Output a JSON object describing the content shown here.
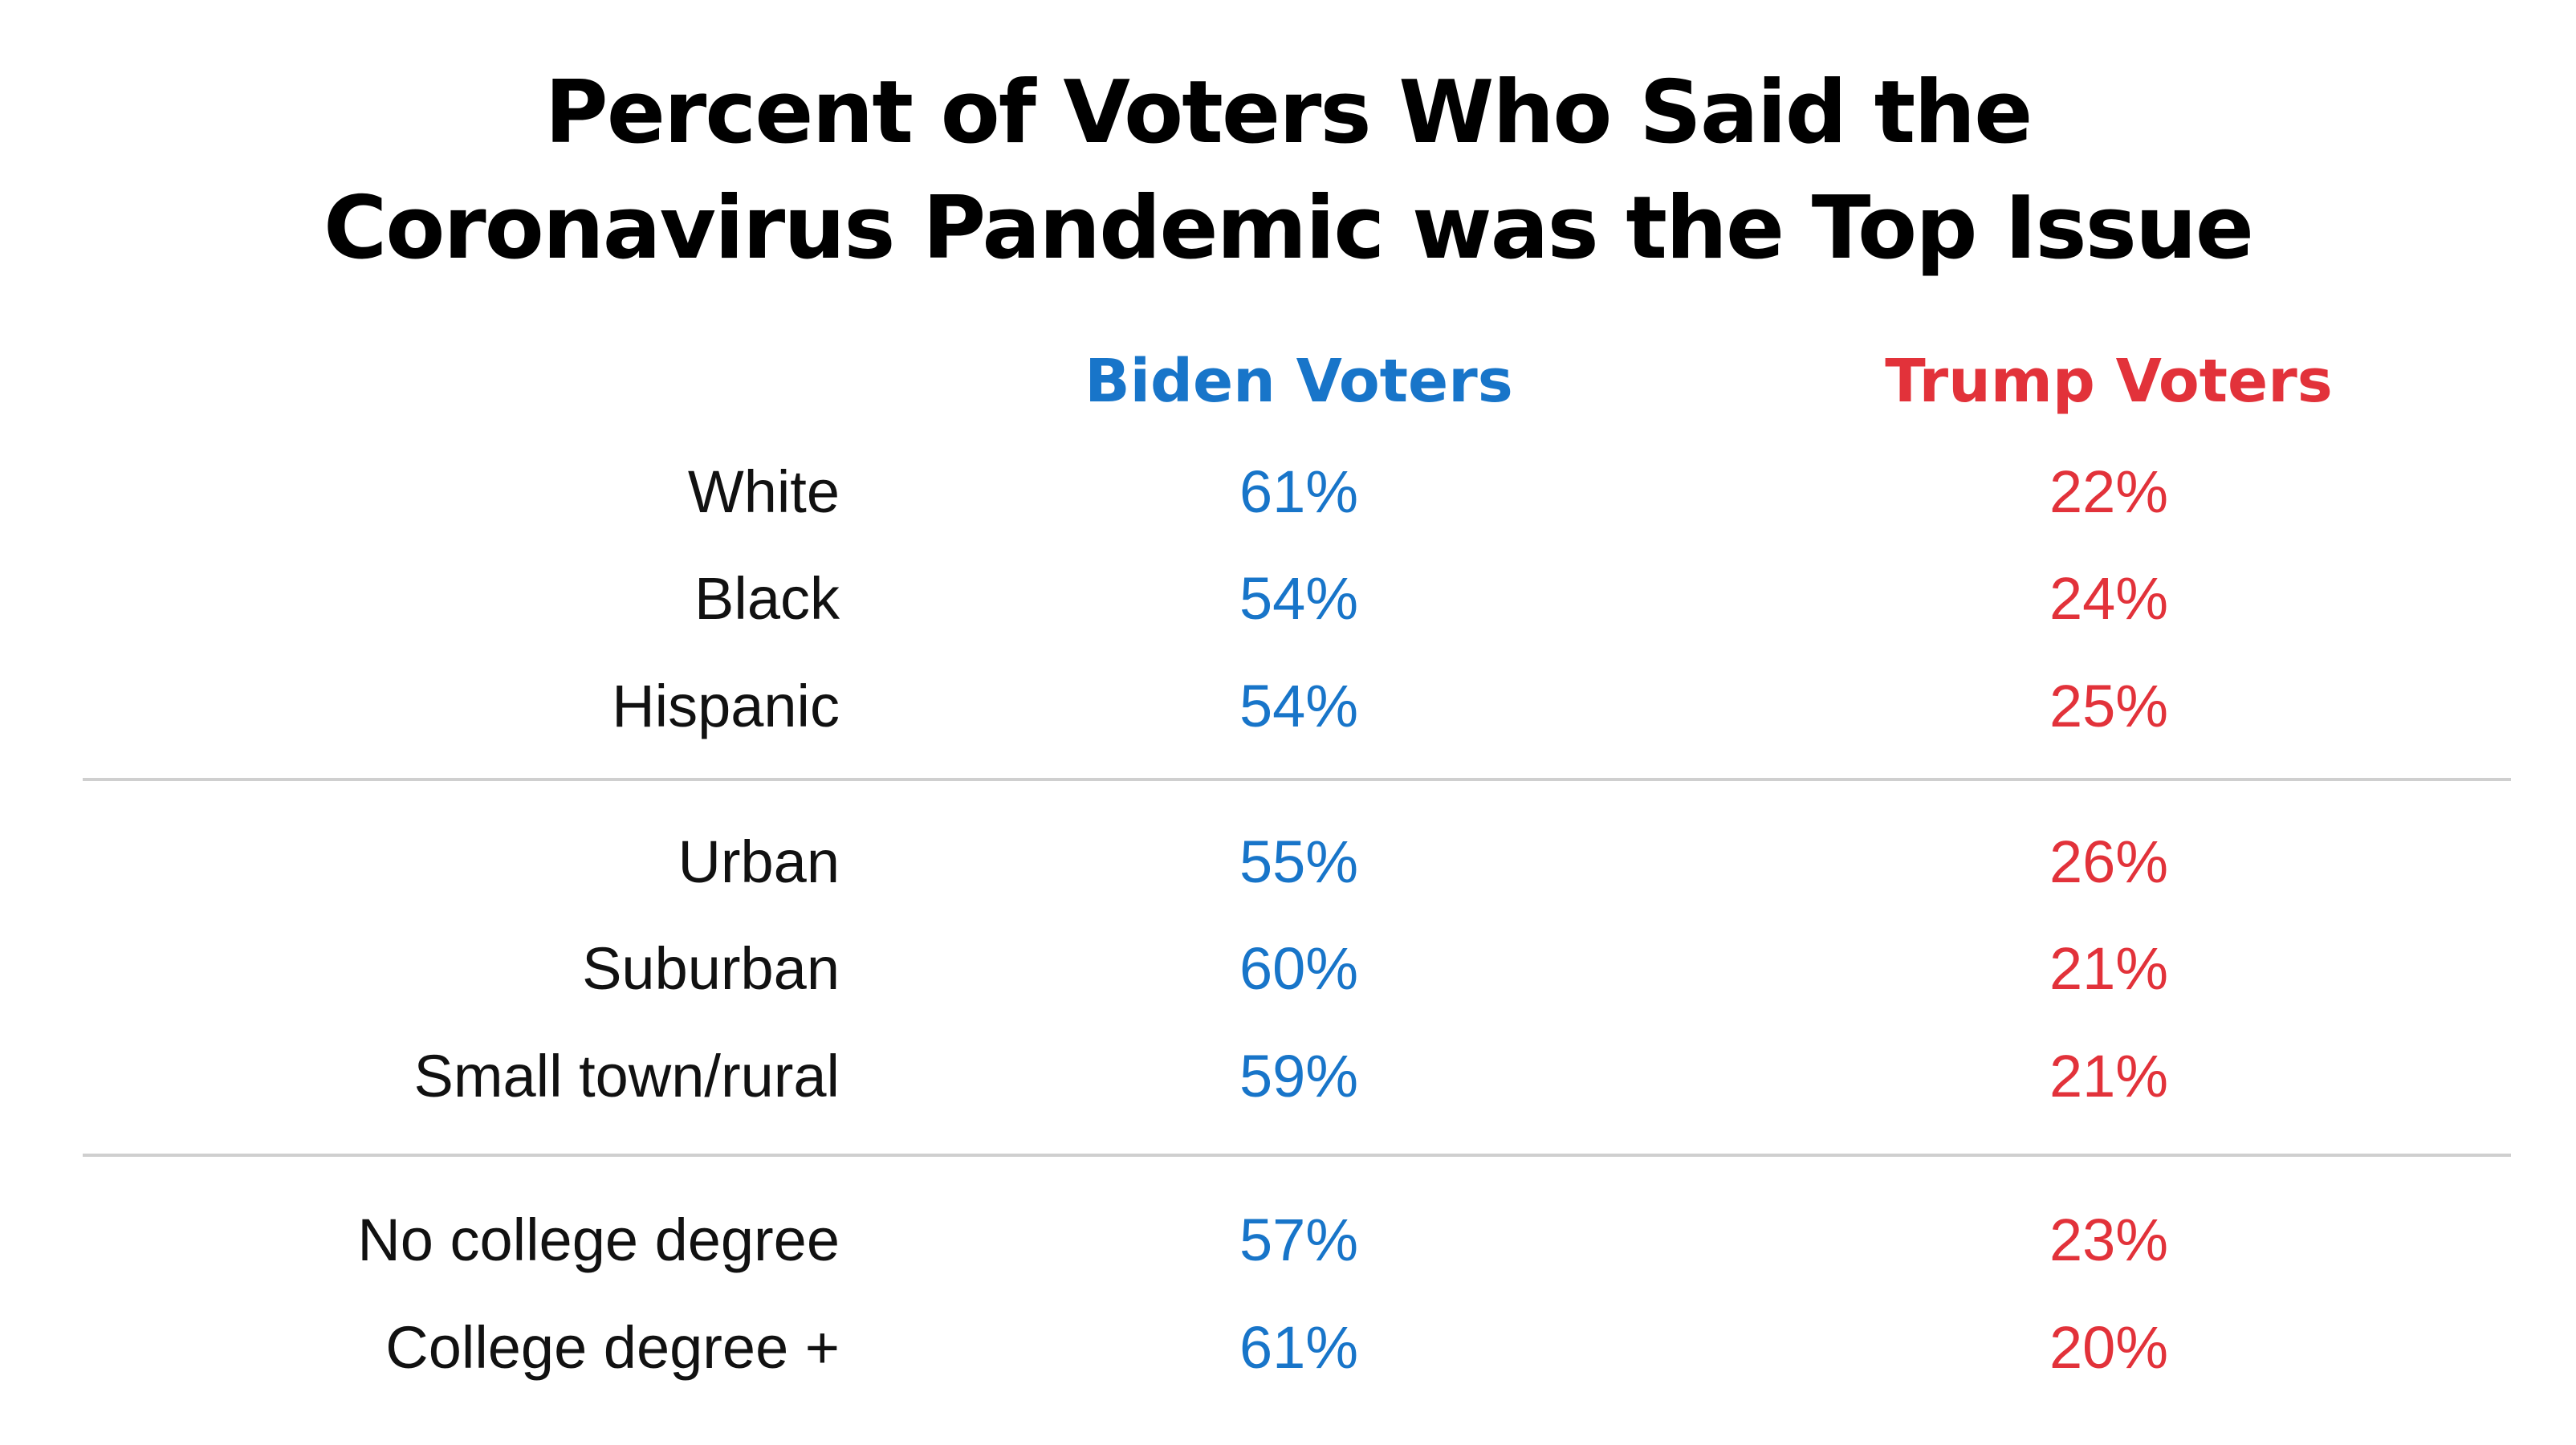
{
  "colors": {
    "biden": "#1875c9",
    "trump": "#e2323a",
    "divider": "#cfcfcf"
  },
  "chart_data": {
    "type": "table",
    "title_lines": [
      "Percent of Voters Who Said the",
      "Coronavirus Pandemic was the Top Issue"
    ],
    "columns": [
      "Biden Voters",
      "Trump Voters"
    ],
    "groups": [
      {
        "rows": [
          {
            "label": "White",
            "biden": "61%",
            "trump": "22%"
          },
          {
            "label": "Black",
            "biden": "54%",
            "trump": "24%"
          },
          {
            "label": "Hispanic",
            "biden": "54%",
            "trump": "25%"
          }
        ]
      },
      {
        "rows": [
          {
            "label": "Urban",
            "biden": "55%",
            "trump": "26%"
          },
          {
            "label": "Suburban",
            "biden": "60%",
            "trump": "21%"
          },
          {
            "label": "Small town/rural",
            "biden": "59%",
            "trump": "21%"
          }
        ]
      },
      {
        "rows": [
          {
            "label": "No college degree",
            "biden": "57%",
            "trump": "23%"
          },
          {
            "label": "College degree +",
            "biden": "61%",
            "trump": "20%"
          }
        ]
      }
    ]
  }
}
